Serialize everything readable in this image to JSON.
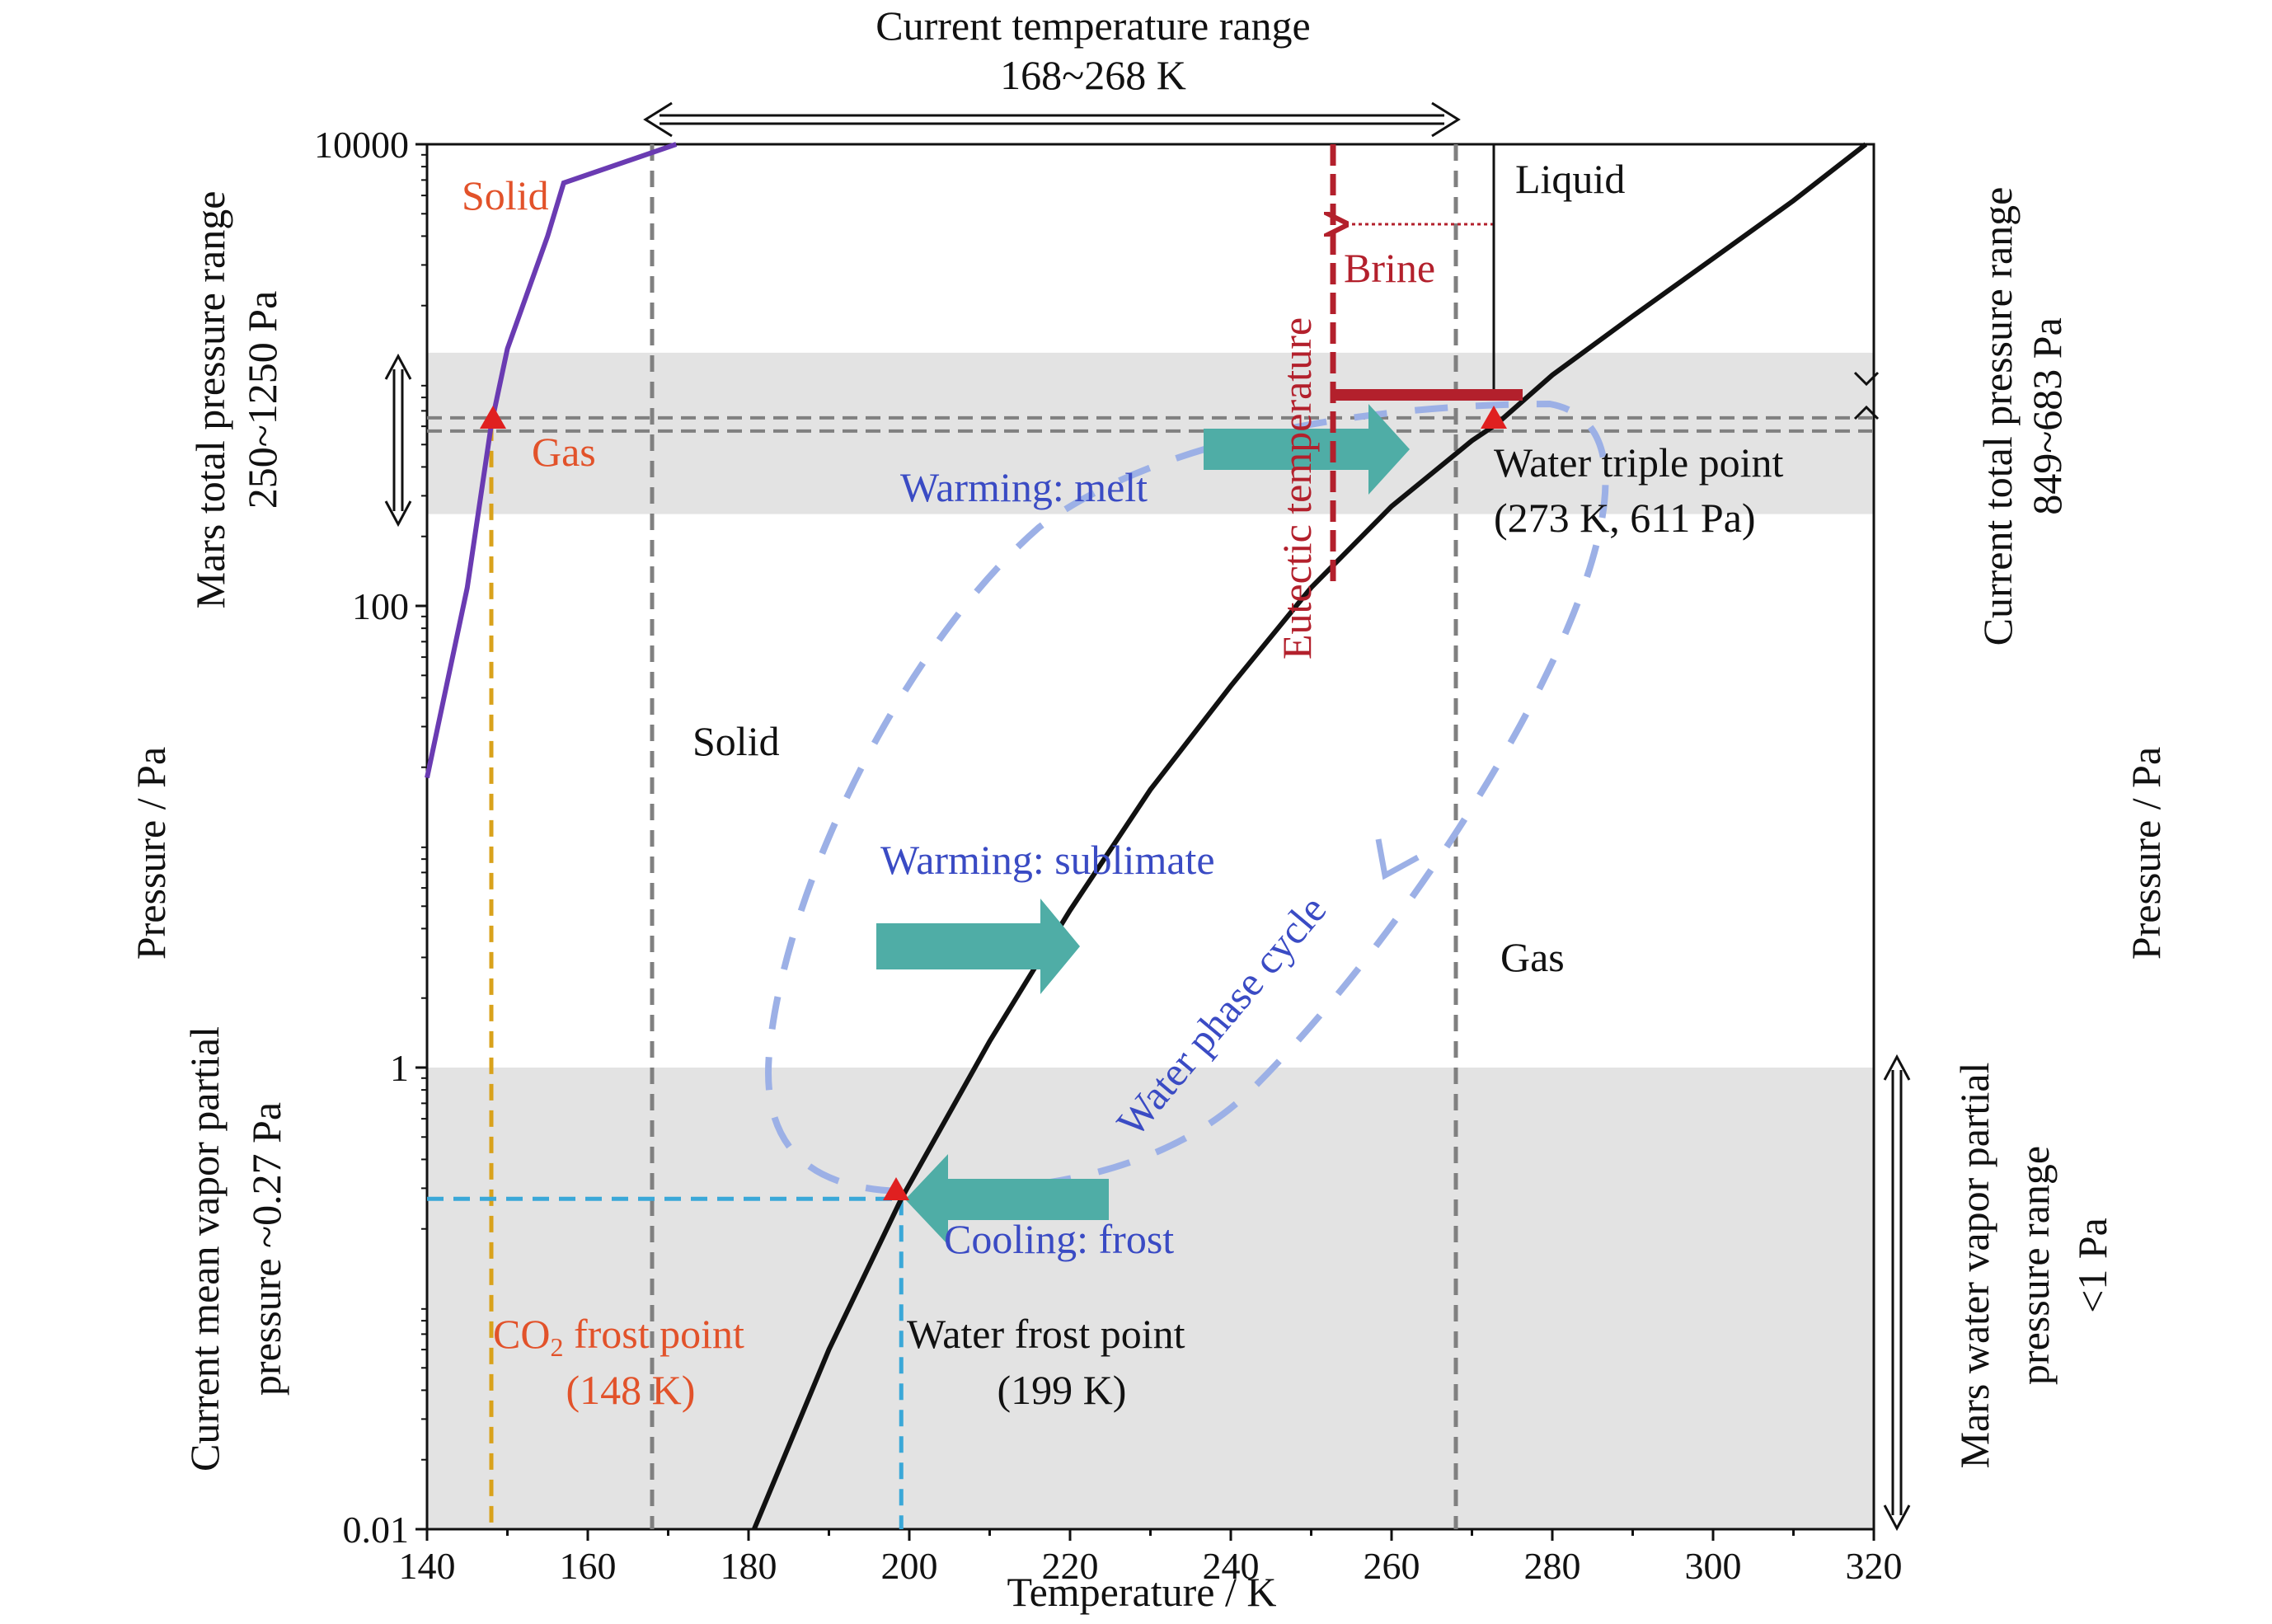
{
  "chart_data": {
    "type": "line",
    "title": "",
    "xlabel": "Temperature / K",
    "ylabel_left": "Pressure / Pa",
    "ylabel_right": "Pressure / Pa",
    "xlim": [
      140,
      320
    ],
    "ylim": [
      0.01,
      10000
    ],
    "yscale": "log",
    "x_ticks": [
      "140",
      "160",
      "180",
      "200",
      "220",
      "240",
      "260",
      "280",
      "300",
      "320"
    ],
    "y_ticks": [
      "10000",
      "100",
      "1",
      "0.01"
    ],
    "series": [
      {
        "name": "Water solid-gas boundary",
        "color": "#111111",
        "points": [
          [
            180.7,
            0.01
          ],
          [
            190,
            0.06
          ],
          [
            199,
            0.27
          ],
          [
            210,
            1.3
          ],
          [
            220,
            4.8
          ],
          [
            230,
            16
          ],
          [
            240,
            45
          ],
          [
            250,
            120
          ],
          [
            260,
            270
          ],
          [
            270,
            520
          ],
          [
            273,
            611
          ],
          [
            280,
            1000
          ],
          [
            290,
            1800
          ],
          [
            300,
            3200
          ],
          [
            310,
            5700
          ],
          [
            319,
            10000
          ]
        ]
      },
      {
        "name": "CO2 solid-gas boundary",
        "color": "#6a3bb2",
        "points": [
          [
            140,
            18
          ],
          [
            145,
            120
          ],
          [
            148,
            611
          ],
          [
            150,
            1300
          ],
          [
            155,
            4000
          ],
          [
            157,
            6800
          ],
          [
            171,
            10000
          ]
        ]
      }
    ],
    "annotations": {
      "top_range_title": "Current temperature range",
      "top_range_value": "168~268 K",
      "left_total_pressure_title": "Mars total pressure range",
      "left_total_pressure_value": "250~1250 Pa",
      "left_vapor_title": "Current mean vapor partial",
      "left_vapor_value": "pressure ~0.27 Pa",
      "right_total_title": "Current total pressure range",
      "right_total_value": "849~683 Pa",
      "right_vapor_line1": "Mars water vapor partial",
      "right_vapor_line2": "pressure range",
      "right_vapor_line3": "<1 Pa",
      "co2_solid": "Solid",
      "co2_gas": "Gas",
      "water_solid": "Solid",
      "water_liquid": "Liquid",
      "water_gas": "Gas",
      "brine": "Brine",
      "eutectic": "Eutectic temperature",
      "triple_point_name": "Water triple point",
      "triple_point_value": "(273 K, 611 Pa)",
      "warming_melt": "Warming: melt",
      "warming_sublimate": "Warming: sublimate",
      "cooling_frost": "Cooling: frost",
      "phase_cycle": "Water phase cycle",
      "co2_frost_label_prefix": "CO",
      "co2_frost_label_subscript": "2",
      "co2_frost_label_suffix": " frost point",
      "co2_frost_temp": "(148 K)",
      "water_frost_name": "Water frost point",
      "water_frost_temp": "(199 K)"
    },
    "reference_lines": {
      "temp_range": [
        168,
        268
      ],
      "co2_frost_temp": 148,
      "water_frost_temp": 199,
      "mean_vapor_pressure": 0.27,
      "triple_point": [
        273,
        611
      ],
      "eutectic_temp": 252.5,
      "total_pressure_band": [
        250,
        1250
      ],
      "vapor_band_max": 1
    },
    "colors": {
      "band": "#e3e3e3",
      "dashed_gray": "#808080",
      "co2_frost_line": "#d9a21b",
      "water_frost_line": "#3aa8d8",
      "cycle": "#9cb0e6",
      "arrow": "#4fada6",
      "brine": "#b3202c",
      "marker": "#e02020"
    }
  }
}
